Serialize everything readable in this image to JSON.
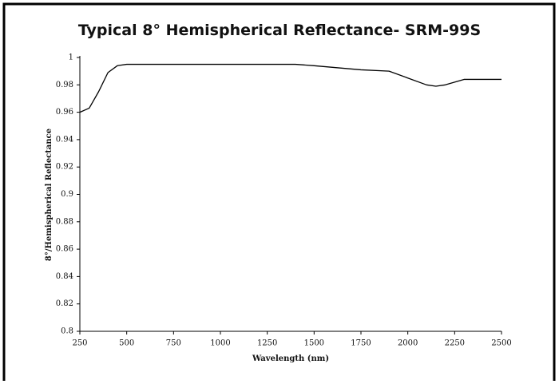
{
  "chart_data": {
    "type": "line",
    "title": "Typical 8° Hemispherical Reflectance- SRM-99S",
    "x_label": "Wavelength (nm)",
    "y_label": "8°/Hemispherical Reflectance",
    "x": [
      250,
      300,
      350,
      400,
      450,
      500,
      750,
      1000,
      1250,
      1400,
      1500,
      1750,
      1900,
      2000,
      2100,
      2150,
      2200,
      2250,
      2300,
      2500
    ],
    "series": [
      {
        "name": "SRM-99S",
        "color": "#000000",
        "values": [
          0.96,
          0.963,
          0.975,
          0.989,
          0.994,
          0.995,
          0.995,
          0.995,
          0.995,
          0.995,
          0.994,
          0.991,
          0.99,
          0.985,
          0.98,
          0.979,
          0.98,
          0.982,
          0.984,
          0.984
        ]
      }
    ],
    "xlim": [
      250,
      2500
    ],
    "xticks": [
      250,
      500,
      750,
      1000,
      1250,
      1500,
      1750,
      2000,
      2250,
      2500
    ],
    "ylim": [
      0.8,
      1
    ],
    "yticks": [
      0.8,
      0.82,
      0.84,
      0.86,
      0.88,
      0.9,
      0.92,
      0.94,
      0.96,
      0.98,
      1
    ]
  }
}
